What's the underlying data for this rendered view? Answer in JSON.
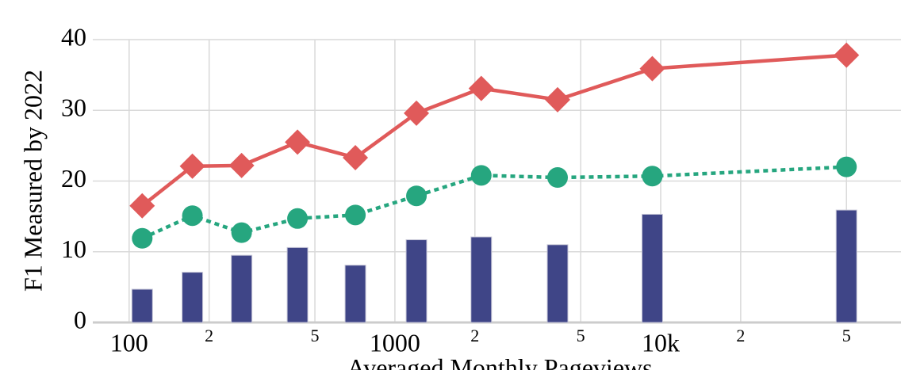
{
  "chart_data": {
    "type": "combo",
    "x_label": "Averaged Monthly Pageviews",
    "y_label": "F1 Measured by 2022",
    "x": [
      112,
      173,
      265,
      430,
      710,
      1205,
      2113,
      4093,
      9300,
      50000
    ],
    "series": [
      {
        "type": "bar",
        "color": "#3f4587",
        "values": [
          4.7,
          7.1,
          9.5,
          10.6,
          8.1,
          11.7,
          12.1,
          11.0,
          15.3,
          15.9
        ]
      },
      {
        "type": "line",
        "color": "#e05a5a",
        "marker": "diamond",
        "dash": "solid",
        "values": [
          16.5,
          22.1,
          22.2,
          25.5,
          23.3,
          29.6,
          33.1,
          31.5,
          35.9,
          37.8
        ]
      },
      {
        "type": "line",
        "color": "#26a67f",
        "marker": "circle",
        "dash": "dotted",
        "values": [
          11.9,
          15.1,
          12.7,
          14.7,
          15.2,
          17.9,
          20.8,
          20.5,
          20.7,
          22.0
        ]
      }
    ],
    "xscale": "log",
    "xlim": [
      73,
      80200
    ],
    "xticks": [
      100,
      {
        "value": 200,
        "label": "2"
      },
      {
        "value": 500,
        "label": "5"
      },
      1000,
      {
        "value": 2000,
        "label": "2"
      },
      {
        "value": 5000,
        "label": "5"
      },
      {
        "value": 10000,
        "label": "10k"
      },
      {
        "value": 20000,
        "label": "2"
      },
      {
        "value": 50000,
        "label": "5"
      }
    ],
    "ylim": [
      0,
      40
    ],
    "yticks": [
      0,
      10,
      20,
      30,
      40
    ],
    "grid": true
  }
}
